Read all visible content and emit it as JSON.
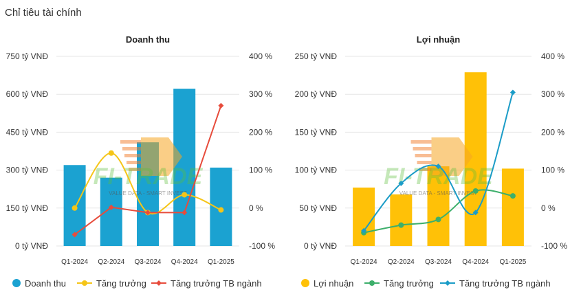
{
  "page": {
    "title": "Chỉ tiêu tài chính"
  },
  "watermark": {
    "text": "FI-TRADE",
    "subtext": "VALUE DATA - SMART INVEST"
  },
  "colors": {
    "revenue_bar": "#1ba2d1",
    "profit_bar": "#ffc107",
    "growth_revenue": "#f5c518",
    "industry_revenue": "#e74c3c",
    "growth_profit": "#3daf6b",
    "industry_profit": "#1b9cc7"
  },
  "chart_data": [
    {
      "type": "bar",
      "title": "Doanh thu",
      "categories": [
        "Q1-2024",
        "Q2-2024",
        "Q3-2024",
        "Q4-2024",
        "Q1-2025"
      ],
      "y_ticks": [
        "0 tỷ VNĐ",
        "150 tỷ VNĐ",
        "300 tỷ VNĐ",
        "450 tỷ VNĐ",
        "600 tỷ VNĐ",
        "750 tỷ VNĐ"
      ],
      "y2_ticks": [
        "-100 %",
        "0 %",
        "100 %",
        "200 %",
        "300 %",
        "400 %"
      ],
      "ylim": [
        0,
        750
      ],
      "y2lim": [
        -100,
        400
      ],
      "series": [
        {
          "name": "Doanh thu",
          "kind": "bar",
          "axis": "left",
          "values": [
            320,
            270,
            410,
            622,
            310
          ]
        },
        {
          "name": "Tăng trưởng",
          "kind": "smooth-line",
          "axis": "right",
          "values": [
            0,
            145,
            -12,
            35,
            -5
          ]
        },
        {
          "name": "Tăng trưởng TB ngành",
          "kind": "line",
          "axis": "right",
          "values": [
            -70,
            2,
            -12,
            -12,
            270
          ]
        }
      ]
    },
    {
      "type": "bar",
      "title": "Lợi nhuận",
      "categories": [
        "Q1-2024",
        "Q2-2024",
        "Q3-2024",
        "Q4-2024",
        "Q1-2025"
      ],
      "y_ticks": [
        "0 tỷ VNĐ",
        "50 tỷ VNĐ",
        "100 tỷ VNĐ",
        "150 tỷ VNĐ",
        "200 tỷ VNĐ",
        "250 tỷ VNĐ"
      ],
      "y2_ticks": [
        "-100 %",
        "0 %",
        "100 %",
        "200 %",
        "300 %",
        "400 %"
      ],
      "ylim": [
        0,
        250
      ],
      "y2lim": [
        -100,
        400
      ],
      "series": [
        {
          "name": "Lợi nhuận",
          "kind": "bar",
          "axis": "left",
          "values": [
            77,
            68,
            105,
            229,
            102
          ]
        },
        {
          "name": "Tăng trưởng",
          "kind": "smooth-line",
          "axis": "right",
          "values": [
            -65,
            -45,
            -30,
            45,
            32
          ]
        },
        {
          "name": "Tăng trưởng TB ngành",
          "kind": "line",
          "axis": "right",
          "values": [
            -60,
            65,
            110,
            -12,
            305
          ]
        }
      ]
    }
  ]
}
